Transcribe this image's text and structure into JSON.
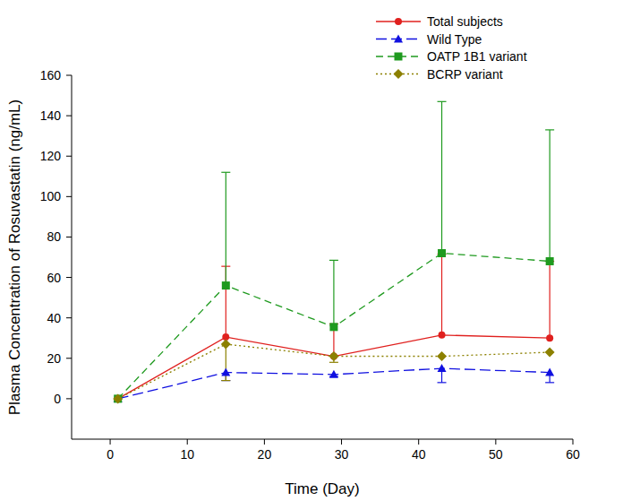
{
  "chart_data": {
    "type": "line",
    "x_label": "Time (Day)",
    "y_label": "Plasma Concentration of Rosuvastatin (ng/mL)",
    "x": [
      1,
      15,
      29,
      43,
      57
    ],
    "xlim": [
      -5,
      60
    ],
    "xticks": [
      0,
      10,
      20,
      30,
      40,
      50,
      60
    ],
    "ylim": [
      -20,
      160
    ],
    "yticks": [
      0,
      20,
      40,
      60,
      80,
      100,
      120,
      140,
      160
    ],
    "grid": false,
    "legend": "top-right",
    "series": [
      {
        "name": "Total subjects",
        "color": "#e0201e",
        "marker": "circle",
        "line_style": "solid",
        "values": [
          0,
          30.5,
          21,
          31.5,
          30
        ],
        "error_upper": [
          null,
          35,
          16,
          40,
          38
        ],
        "error_lower": [
          null,
          null,
          null,
          null,
          null
        ]
      },
      {
        "name": "Wild Type",
        "color": "#1010e0",
        "marker": "triangle",
        "line_style": "longdash",
        "values": [
          0,
          13,
          12,
          15,
          13
        ],
        "error_upper": [
          null,
          null,
          null,
          null,
          null
        ],
        "error_lower": [
          null,
          4,
          1,
          7,
          5
        ]
      },
      {
        "name": "OATP 1B1 variant",
        "color": "#1f9a1f",
        "marker": "square",
        "line_style": "dash",
        "values": [
          0,
          56,
          35.5,
          72,
          68
        ],
        "error_upper": [
          null,
          56,
          33,
          75,
          65
        ],
        "error_lower": [
          null,
          null,
          null,
          null,
          null
        ]
      },
      {
        "name": "BCRP variant",
        "color": "#8c8000",
        "marker": "diamond",
        "line_style": "dot",
        "values": [
          0,
          27,
          21,
          21,
          23
        ],
        "error_upper": [
          null,
          null,
          null,
          null,
          null
        ],
        "error_lower": [
          null,
          18,
          3,
          null,
          null
        ]
      }
    ]
  }
}
